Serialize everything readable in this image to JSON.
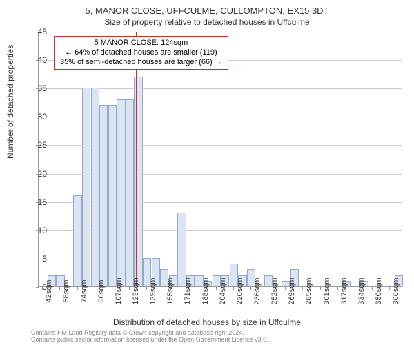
{
  "chart": {
    "type": "histogram",
    "title_main": "5, MANOR CLOSE, UFFCULME, CULLOMPTON, EX15 3DT",
    "title_sub": "Size of property relative to detached houses in Uffculme",
    "ylabel": "Number of detached properties",
    "xlabel": "Distribution of detached houses by size in Uffculme",
    "ylim": [
      0,
      45
    ],
    "ytick_step": 5,
    "yticks": [
      0,
      5,
      10,
      15,
      20,
      25,
      30,
      35,
      40,
      45
    ],
    "xticks": [
      "42sqm",
      "58sqm",
      "74sqm",
      "90sqm",
      "107sqm",
      "123sqm",
      "139sqm",
      "155sqm",
      "171sqm",
      "188sqm",
      "204sqm",
      "220sqm",
      "236sqm",
      "252sqm",
      "269sqm",
      "285sqm",
      "301sqm",
      "317sqm",
      "334sqm",
      "350sqm",
      "366sqm"
    ],
    "bar_color": "#dbe4f2",
    "bar_border_color": "#94a8c9",
    "grid_color": "#cccccc",
    "axis_color": "#999999",
    "background_color": "#ffffff",
    "label_fontsize": 12,
    "tick_fontsize": 11,
    "title_fontsize": 13,
    "bars": {
      "count": 42,
      "values": [
        0,
        2,
        2,
        0,
        16,
        35,
        35,
        32,
        32,
        33,
        33,
        37,
        5,
        5,
        3,
        2,
        13,
        2,
        2,
        1,
        2,
        2,
        4,
        2,
        3,
        0,
        2,
        0,
        1,
        3,
        0,
        0,
        0,
        0,
        0,
        1,
        0,
        1,
        0,
        0,
        0,
        2
      ]
    },
    "marker": {
      "position_index": 11.2,
      "color": "#cc3030"
    },
    "annotation": {
      "line1": "5 MANOR CLOSE: 124sqm",
      "line2": "← 64% of detached houses are smaller (119)",
      "line3": "35% of semi-detached houses are larger (66) →",
      "border_color": "#cc3030",
      "background": "#ffffff",
      "fontsize": 11
    },
    "footer": {
      "line1": "Contains HM Land Registry data © Crown copyright and database right 2024.",
      "line2": "Contains public sector information licensed under the Open Government Licence v3.0."
    }
  }
}
